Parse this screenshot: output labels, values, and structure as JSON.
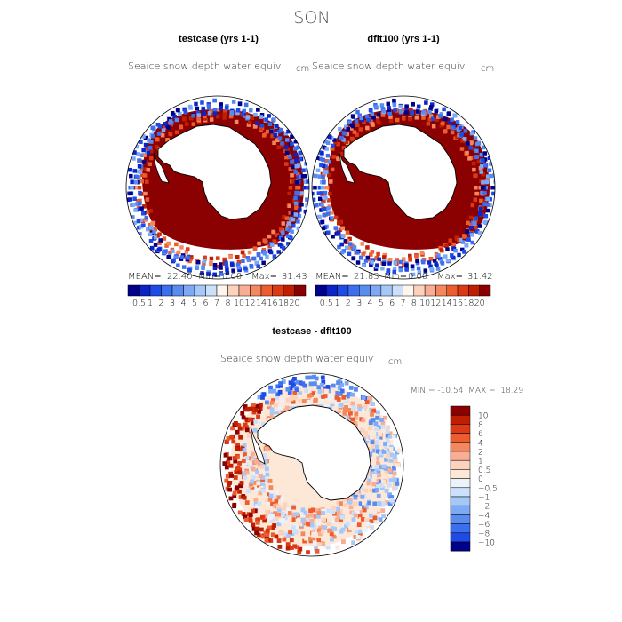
{
  "page": {
    "season": "SON"
  },
  "chart_data": [
    {
      "type": "heatmap",
      "projection": "south polar stereographic",
      "title": "testcase (yrs 1-1)",
      "variable": "Seaice snow depth water equiv",
      "units": "cm",
      "stats": {
        "mean_label": "MEAN=",
        "mean": "22.40",
        "min_label": "Min=",
        "min": "0.00",
        "max_label": "Max=",
        "max": "31.43"
      },
      "colorbar_levels": [
        "0.5",
        "1",
        "2",
        "3",
        "4",
        "5",
        "6",
        "7",
        "8",
        "10",
        "12",
        "14",
        "16",
        "18",
        "20"
      ],
      "colors": [
        "#00008b",
        "#0a24c8",
        "#1e4be6",
        "#3c6ef0",
        "#5a8cf0",
        "#7eaaf5",
        "#a4c8f8",
        "#cce0fa",
        "#fff5ec",
        "#fcd2bc",
        "#f8ad94",
        "#f4875e",
        "#ec5c2e",
        "#dc3a14",
        "#c01e00",
        "#8b0000"
      ],
      "field_description": "snow depth over sea ice: mostly >20 cm (dark red) around Antarctica, blue values at outer ice edge"
    },
    {
      "type": "heatmap",
      "projection": "south polar stereographic",
      "title": "dflt100 (yrs 1-1)",
      "variable": "Seaice snow depth water equiv",
      "units": "cm",
      "stats": {
        "mean_label": "MEAN=",
        "mean": "21.83",
        "min_label": "Min=",
        "min": "0.00",
        "max_label": "Max=",
        "max": "31.42"
      },
      "colorbar_levels": [
        "0.5",
        "1",
        "2",
        "3",
        "4",
        "5",
        "6",
        "7",
        "8",
        "10",
        "12",
        "14",
        "16",
        "18",
        "20"
      ],
      "colors": [
        "#00008b",
        "#0a24c8",
        "#1e4be6",
        "#3c6ef0",
        "#5a8cf0",
        "#7eaaf5",
        "#a4c8f8",
        "#cce0fa",
        "#fff5ec",
        "#fcd2bc",
        "#f8ad94",
        "#f4875e",
        "#ec5c2e",
        "#dc3a14",
        "#c01e00",
        "#8b0000"
      ]
    },
    {
      "type": "heatmap",
      "projection": "south polar stereographic",
      "title": "testcase - dflt100",
      "variable": "Seaice snow depth water equiv",
      "units": "cm",
      "range_text": "MIN = -10.54  MAX =  18.29",
      "colorbar_levels": [
        "10",
        "8",
        "6",
        "4",
        "2",
        "1",
        "0.5",
        "0",
        "−0.5",
        "−1",
        "−2",
        "−4",
        "−6",
        "−8",
        "−10"
      ],
      "colors": [
        "#8b0000",
        "#c01e00",
        "#dc3a14",
        "#ec5c2e",
        "#f4875e",
        "#f8ad94",
        "#fcd2bc",
        "#fde8d8",
        "#eaf2fb",
        "#cce0fa",
        "#a4c8f8",
        "#7eaaf5",
        "#5a8cf0",
        "#3c6ef0",
        "#1e4be6",
        "#00008b"
      ]
    }
  ]
}
